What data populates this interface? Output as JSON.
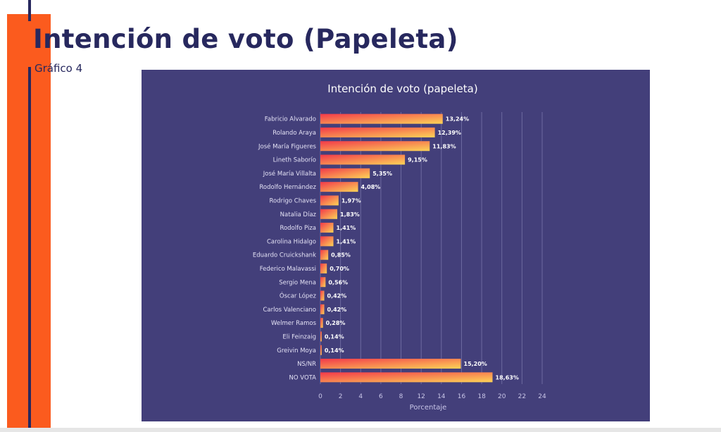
{
  "page": {
    "title": "Intención de voto (Papeleta)",
    "subtitle": "Gráfico 4"
  },
  "colors": {
    "accent_orange": "#fb5b1e",
    "navy": "#27285e",
    "panel_bg": "#433f7a",
    "bar_gradient_start": "#f2394a",
    "bar_gradient_end": "#fdd457"
  },
  "chart_data": {
    "type": "bar",
    "orientation": "horizontal",
    "title": "Intención de voto (papeleta)",
    "xlabel": "Porcentaje",
    "ylabel": "",
    "xlim": [
      0,
      24
    ],
    "grid": true,
    "x_tick_labels": [
      "0",
      "2",
      "4",
      "6",
      "8",
      "12",
      "14",
      "16",
      "18",
      "20",
      "22",
      "24"
    ],
    "categories": [
      "Fabricio Alvarado",
      "Rolando Araya",
      "José María Figueres",
      "Lineth Saborío",
      "José María Villalta",
      "Rodolfo Hernández",
      "Rodrigo Chaves",
      "Natalia Díaz",
      "Rodolfo Piza",
      "Carolina Hidalgo",
      "Eduardo Cruickshank",
      "Federico Malavassi",
      "Sergio Mena",
      "Óscar López",
      "Carlos Valenciano",
      "Welmer Ramos",
      "Eli Feinzaig",
      "Greivin Moya",
      "NS/NR",
      "NO VOTA"
    ],
    "values": [
      13.24,
      12.39,
      11.83,
      9.15,
      5.35,
      4.08,
      1.97,
      1.83,
      1.41,
      1.41,
      0.85,
      0.7,
      0.56,
      0.42,
      0.42,
      0.28,
      0.14,
      0.14,
      15.2,
      18.63
    ],
    "data_labels": [
      "13,24%",
      "12,39%",
      "11,83%",
      "9,15%",
      "5,35%",
      "4,08%",
      "1,97%",
      "1,83%",
      "1,41%",
      "1,41%",
      "0,85%",
      "0,70%",
      "0,56%",
      "0,42%",
      "0,42%",
      "0,28%",
      "0,14%",
      "0,14%",
      "15,20%",
      "18,63%"
    ]
  }
}
